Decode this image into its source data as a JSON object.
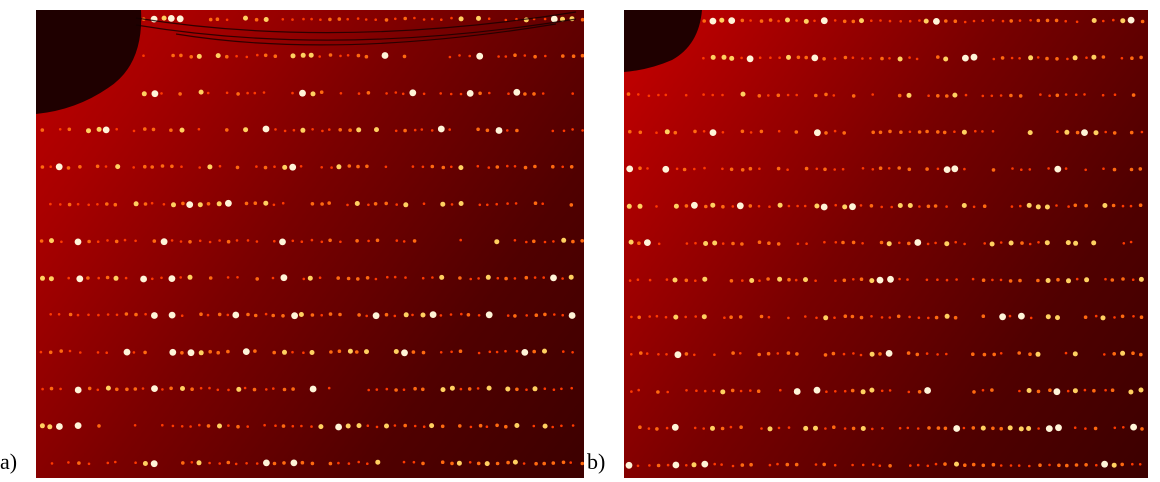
{
  "figure": {
    "panels": [
      {
        "label": "a)"
      },
      {
        "label": "b)"
      }
    ],
    "colors": {
      "background_dark": "#3c0000",
      "background_light": "#c00000",
      "spot_bright": "#fff4d8",
      "spot_mid": "#ff6a10",
      "beamstop": "#1f0000"
    }
  }
}
